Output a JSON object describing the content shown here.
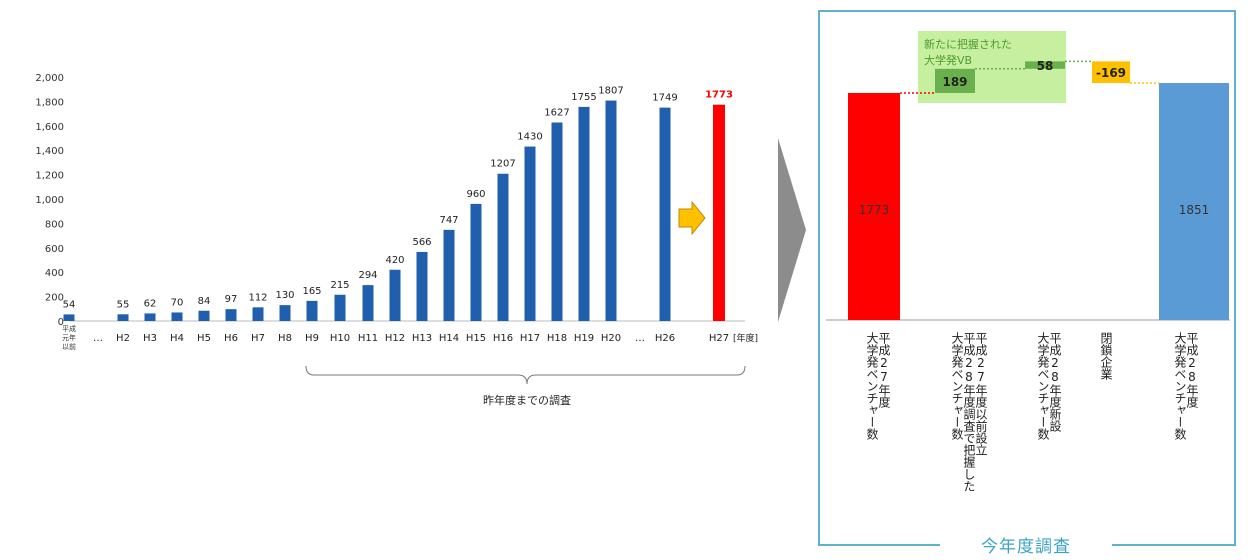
{
  "chart_data": [
    {
      "type": "bar",
      "categories": [
        "平成元年以前",
        "…",
        "H2",
        "H3",
        "H4",
        "H5",
        "H6",
        "H7",
        "H8",
        "H9",
        "H10",
        "H11",
        "H12",
        "H13",
        "H14",
        "H15",
        "H16",
        "H17",
        "H18",
        "H19",
        "H20",
        "…",
        "H26",
        "H27"
      ],
      "values": [
        54,
        null,
        55,
        62,
        70,
        84,
        97,
        112,
        130,
        165,
        215,
        294,
        420,
        566,
        747,
        960,
        1207,
        1430,
        1627,
        1755,
        1807,
        null,
        1749,
        1773
      ],
      "x_unit_label": "[年度]",
      "ylim": [
        0,
        2000
      ],
      "yticks": [
        "0",
        "200",
        "400",
        "600",
        "800",
        "1,000",
        "1,200",
        "1,400",
        "1,600",
        "1,800",
        "2,000"
      ],
      "bracket_label": "昨年度までの調査",
      "highlight_index": 23,
      "colors": {
        "bar": "#1f5fad",
        "highlight": "#ff0000"
      }
    },
    {
      "type": "waterfall",
      "steps": [
        {
          "label": "平成27年度大学発ベンチャー数",
          "lines": [
            "平成27年度",
            "大学発ベンチャー数"
          ],
          "value": 1773,
          "kind": "total",
          "color": "#ff0000"
        },
        {
          "label": "平成27年度以前設立平成28年度調査で把握した大学発ベンチャー数",
          "lines": [
            "平成27年度以前設立",
            "平成28年度調査で把握した",
            "大学発ベンチャー数"
          ],
          "value": 189,
          "kind": "increase",
          "color": "#6ab04c"
        },
        {
          "label": "平成28年度新設大学発ベンチャー数",
          "lines": [
            "平成28年度新設",
            "大学発ベンチャー数"
          ],
          "value": 58,
          "kind": "increase",
          "color": "#6ab04c"
        },
        {
          "label": "閉鎖企業",
          "lines": [
            "閉鎖企業"
          ],
          "value": -169,
          "kind": "decrease",
          "color": "#ffc000"
        },
        {
          "label": "平成28年度大学発ベンチャー数",
          "lines": [
            "平成28年度",
            "大学発ベンチャー数"
          ],
          "value": 1851,
          "kind": "total",
          "color": "#5b9bd5"
        }
      ],
      "value_labels": [
        "1773",
        "189",
        "58",
        "-169",
        "1851"
      ],
      "annotation": [
        "新たに把握された",
        "大学発VB"
      ],
      "panel_label": "今年度調査",
      "annotation_color": "#c6efa0"
    }
  ],
  "x_unit_label": "[年度]",
  "panel_label": "今年度調査",
  "bracket_label": "昨年度までの調査",
  "annotation_line1": "新たに把握された",
  "annotation_line2": "大学発VB"
}
